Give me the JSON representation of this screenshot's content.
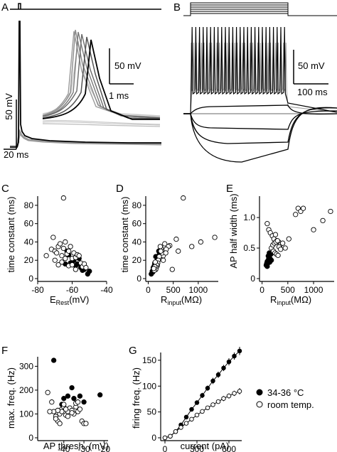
{
  "panels": {
    "A": {
      "label": "A",
      "scalebar_v": "50 mV",
      "scalebar_inset_v": "50 mV",
      "scalebar_h": "20 ms",
      "scalebar_inset_h": "1 ms"
    },
    "B": {
      "label": "B",
      "scalebar_v": "50 mV",
      "scalebar_h": "100 ms"
    }
  },
  "legend": [
    {
      "marker": "filled",
      "text": "34-36 °C"
    },
    {
      "marker": "open",
      "text": "room temp."
    }
  ],
  "colors": {
    "warm": "#000000",
    "room": "#ffffff",
    "trace_gray": "#9a9a9a",
    "trace_light": "#c8c8c8"
  },
  "chart_data": [
    {
      "id": "C",
      "label": "C",
      "type": "scatter",
      "xlabel_main": "E",
      "xlabel_sub": "Rest",
      "xlabel_unit": "(mV)",
      "ylabel": "time constant (ms)",
      "xlim": [
        -80,
        -40
      ],
      "ylim": [
        0,
        90
      ],
      "xticks": [
        -80,
        -60,
        -40
      ],
      "yticks": [
        0,
        20,
        40,
        60,
        80
      ],
      "xtick_labels": [
        "-80",
        "-60",
        "-40"
      ],
      "ytick_labels": [
        "0",
        "20",
        "40",
        "60",
        "80"
      ],
      "series": [
        {
          "style": "filled",
          "x": [
            -63,
            -61,
            -59,
            -57,
            -55,
            -53,
            -51,
            -60,
            -58,
            -56,
            -64,
            -62,
            -50,
            -54
          ],
          "y": [
            30,
            17,
            20,
            16,
            12,
            10,
            5,
            18,
            14,
            22,
            16,
            26,
            8,
            9
          ]
        },
        {
          "style": "open",
          "x": [
            -65,
            -75,
            -72,
            -71,
            -70,
            -69,
            -68,
            -67,
            -66,
            -65,
            -64,
            -63,
            -62,
            -61,
            -60,
            -59,
            -58,
            -57,
            -56,
            -55,
            -54,
            -53,
            -52,
            -66,
            -64,
            -62,
            -60,
            -58,
            -70,
            -68
          ],
          "y": [
            88,
            25,
            32,
            45,
            30,
            28,
            35,
            38,
            25,
            33,
            40,
            27,
            30,
            35,
            22,
            28,
            23,
            26,
            25,
            17,
            13,
            16,
            12,
            18,
            22,
            14,
            15,
            10,
            20,
            15
          ]
        }
      ]
    },
    {
      "id": "D",
      "label": "D",
      "type": "scatter",
      "xlabel_main": "R",
      "xlabel_sub": "input",
      "xlabel_unit": "(MΩ)",
      "ylabel": "time constant (ms)",
      "xlim": [
        -50,
        1400
      ],
      "ylim": [
        0,
        90
      ],
      "xticks": [
        0,
        500,
        1000
      ],
      "yticks": [
        0,
        20,
        40,
        60,
        80
      ],
      "xtick_labels": [
        "0",
        "500",
        "1000"
      ],
      "ytick_labels": [
        "0",
        "20",
        "40",
        "60",
        "80"
      ],
      "series": [
        {
          "style": "filled",
          "x": [
            60,
            80,
            100,
            120,
            140,
            160,
            180,
            200,
            220,
            100,
            130,
            90,
            150,
            210
          ],
          "y": [
            5,
            8,
            12,
            14,
            16,
            18,
            20,
            22,
            26,
            10,
            17,
            7,
            24,
            30
          ]
        },
        {
          "style": "open",
          "x": [
            700,
            1330,
            1050,
            870,
            560,
            430,
            400,
            360,
            330,
            300,
            280,
            260,
            250,
            240,
            230,
            220,
            200,
            190,
            180,
            170,
            160,
            150,
            140,
            130,
            120,
            110,
            300,
            350,
            600,
            480
          ],
          "y": [
            88,
            45,
            40,
            35,
            43,
            36,
            35,
            32,
            38,
            25,
            28,
            33,
            30,
            35,
            22,
            24,
            20,
            17,
            14,
            15,
            12,
            10,
            18,
            13,
            9,
            11,
            20,
            28,
            30,
            10
          ]
        }
      ]
    },
    {
      "id": "E",
      "label": "E",
      "type": "scatter",
      "xlabel_main": "R",
      "xlabel_sub": "input",
      "xlabel_unit": "(MΩ)",
      "ylabel": "AP half width (ms)",
      "xlim": [
        -50,
        1400
      ],
      "ylim": [
        0,
        1.35
      ],
      "xticks": [
        0,
        500,
        1000
      ],
      "yticks": [
        0,
        0.5,
        1.0
      ],
      "xtick_labels": [
        "0",
        "500",
        "1000"
      ],
      "ytick_labels": [
        "0",
        "0.5",
        "1.0"
      ],
      "series": [
        {
          "style": "filled",
          "x": [
            80,
            90,
            100,
            110,
            120,
            130,
            140,
            150,
            160,
            170,
            100,
            120,
            140,
            180
          ],
          "y": [
            0.22,
            0.25,
            0.28,
            0.25,
            0.3,
            0.33,
            0.35,
            0.27,
            0.32,
            0.4,
            0.2,
            0.37,
            0.42,
            0.3
          ]
        },
        {
          "style": "open",
          "x": [
            100,
            130,
            160,
            200,
            230,
            260,
            290,
            320,
            350,
            180,
            210,
            240,
            270,
            300,
            330,
            360,
            220,
            250,
            280,
            310,
            650,
            700,
            750,
            800,
            1000,
            1180,
            1330,
            520,
            400,
            450
          ],
          "y": [
            0.9,
            0.8,
            0.75,
            0.7,
            0.65,
            0.72,
            0.62,
            0.6,
            0.55,
            0.5,
            0.55,
            0.58,
            0.6,
            0.62,
            0.52,
            0.48,
            0.45,
            0.42,
            0.4,
            0.38,
            1.05,
            1.15,
            1.1,
            1.15,
            0.8,
            0.95,
            1.1,
            0.65,
            0.58,
            0.5
          ]
        }
      ]
    },
    {
      "id": "F",
      "label": "F",
      "type": "scatter",
      "xlabel": "AP thresh. (mV)",
      "ylabel": "max. freq. (Hz)",
      "xlim": [
        -53,
        -18
      ],
      "ylim": [
        0,
        340
      ],
      "xticks": [
        -40,
        -30,
        -20
      ],
      "yticks": [
        0,
        100,
        200,
        300
      ],
      "xtick_labels": [
        "-40",
        "-30",
        "-20"
      ],
      "ytick_labels": [
        "0",
        "100",
        "200",
        "300"
      ],
      "series": [
        {
          "style": "filled",
          "x": [
            -45,
            -40,
            -38,
            -36,
            -32,
            -30,
            -22,
            -37,
            -41,
            -35
          ],
          "y": [
            325,
            165,
            175,
            210,
            175,
            150,
            180,
            115,
            140,
            165
          ]
        },
        {
          "style": "open",
          "x": [
            -48,
            -46,
            -45,
            -44,
            -43,
            -42,
            -41,
            -40,
            -39,
            -38,
            -37,
            -36,
            -35,
            -34,
            -33,
            -32,
            -31,
            -30,
            -29,
            -47,
            -44,
            -42,
            -40,
            -38,
            -36,
            -34,
            -33,
            -39,
            -41,
            -43
          ],
          "y": [
            190,
            150,
            110,
            90,
            70,
            100,
            120,
            130,
            95,
            110,
            125,
            115,
            100,
            130,
            110,
            120,
            70,
            60,
            60,
            110,
            80,
            60,
            140,
            90,
            105,
            145,
            150,
            120,
            110,
            115
          ]
        }
      ]
    },
    {
      "id": "G",
      "label": "G",
      "type": "line",
      "xlabel": "current (pA)",
      "ylabel": "firing freq. (Hz)",
      "xlim": [
        -40,
        720
      ],
      "ylim": [
        0,
        165
      ],
      "xticks": [
        0,
        300,
        600
      ],
      "yticks": [
        0,
        50,
        100,
        150
      ],
      "xtick_labels": [
        "0",
        "300",
        "600"
      ],
      "ytick_labels": [
        "0",
        "50",
        "100",
        "150"
      ],
      "series": [
        {
          "style": "filled",
          "x": [
            0,
            50,
            100,
            150,
            200,
            250,
            300,
            350,
            400,
            450,
            500,
            550,
            600,
            650,
            700
          ],
          "y": [
            0,
            3,
            12,
            25,
            40,
            55,
            68,
            82,
            96,
            110,
            122,
            135,
            147,
            158,
            168
          ],
          "err": [
            0,
            1,
            2,
            3,
            3,
            4,
            4,
            5,
            5,
            6,
            6,
            6,
            7,
            7,
            8
          ]
        },
        {
          "style": "open",
          "x": [
            0,
            50,
            100,
            150,
            200,
            250,
            300,
            350,
            400,
            450,
            500,
            550,
            600,
            650,
            700
          ],
          "y": [
            0,
            3,
            12,
            20,
            28,
            36,
            44,
            51,
            58,
            64,
            70,
            76,
            81,
            86,
            90
          ],
          "err": [
            0,
            1,
            1,
            2,
            2,
            3,
            3,
            3,
            4,
            4,
            4,
            5,
            5,
            5,
            6
          ]
        }
      ]
    }
  ]
}
